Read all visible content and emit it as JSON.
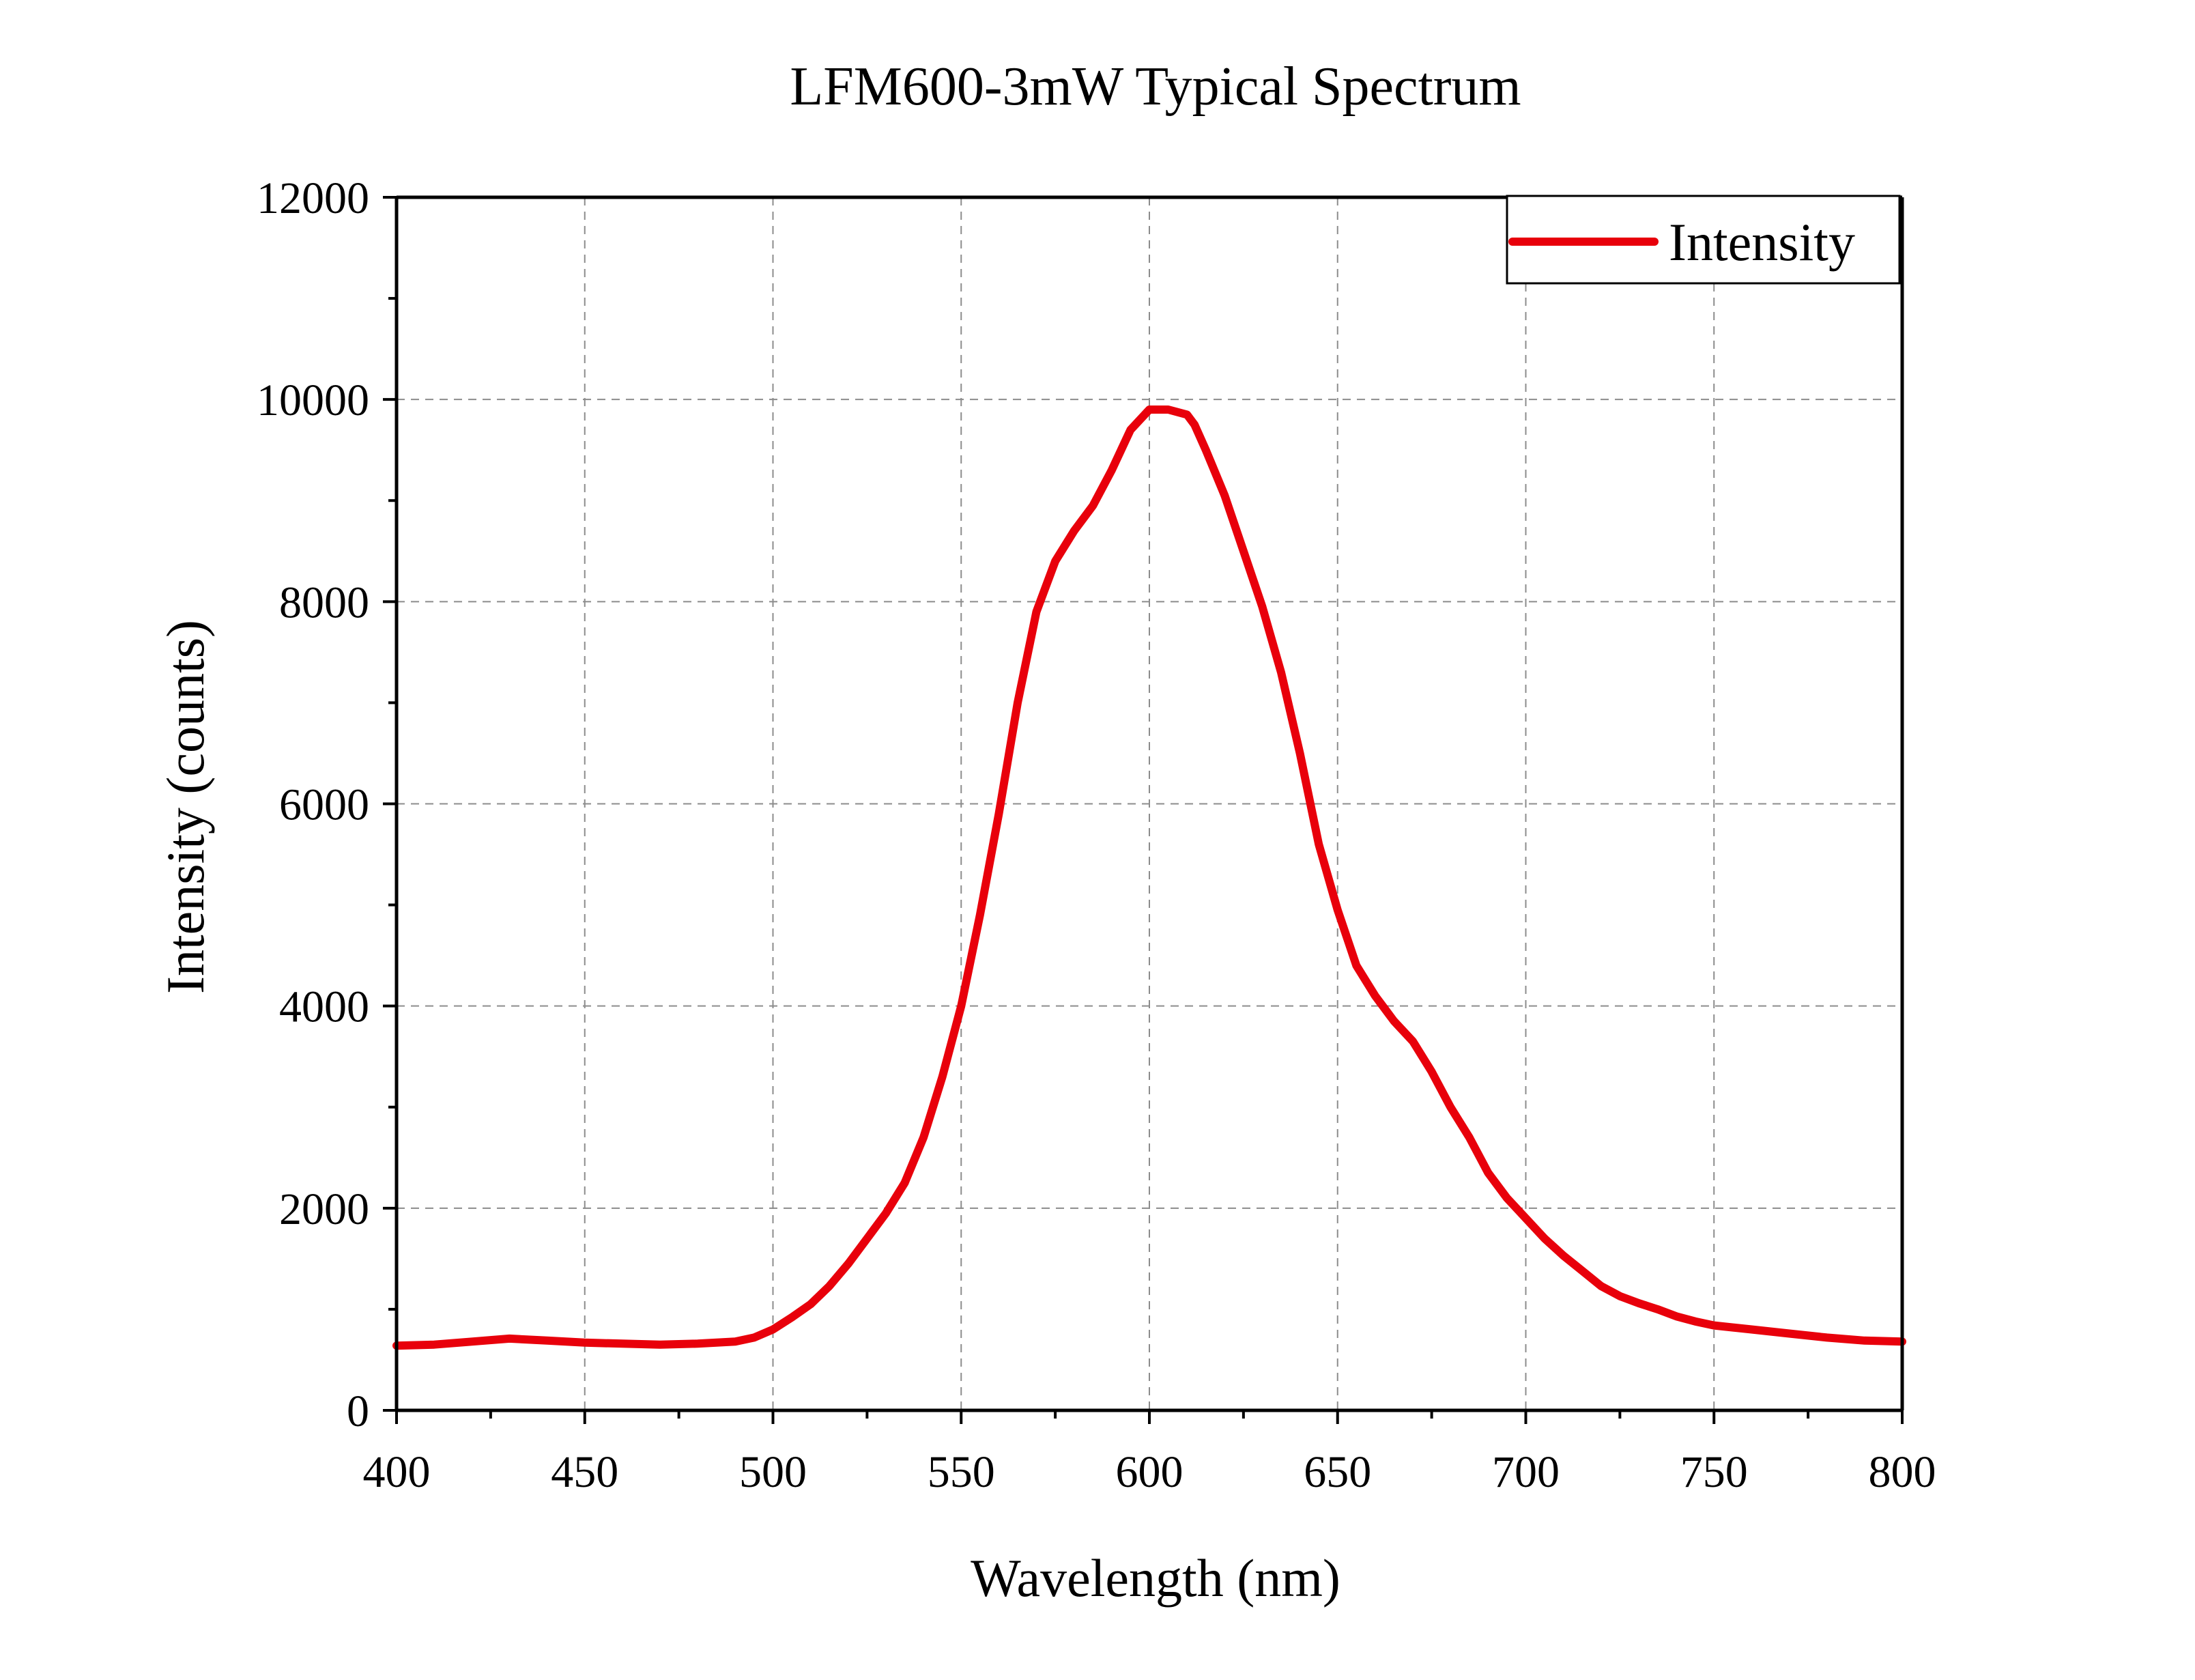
{
  "chart_data": {
    "type": "line",
    "title": "LFM600-3mW Typical Spectrum",
    "xlabel": "Wavelength (nm)",
    "ylabel": "Intensity (counts)",
    "xlim": [
      400,
      800
    ],
    "ylim": [
      0,
      12000
    ],
    "x_ticks": [
      400,
      450,
      500,
      550,
      600,
      650,
      700,
      750,
      800
    ],
    "y_ticks": [
      0,
      2000,
      4000,
      6000,
      8000,
      10000,
      12000
    ],
    "x_tick_labels": [
      "400",
      "450",
      "500",
      "550",
      "600",
      "650",
      "700",
      "750",
      "800"
    ],
    "y_tick_labels": [
      "0",
      "2000",
      "4000",
      "6000",
      "8000",
      "10000",
      "12000"
    ],
    "grid": true,
    "legend_position": "top-right",
    "series": [
      {
        "name": "Intensity",
        "color": "#e8000b",
        "x": [
          400,
          410,
          420,
          430,
          440,
          450,
          460,
          470,
          480,
          490,
          495,
          500,
          505,
          510,
          515,
          520,
          525,
          530,
          535,
          540,
          545,
          550,
          555,
          560,
          565,
          570,
          575,
          580,
          585,
          590,
          595,
          600,
          605,
          610,
          612,
          615,
          620,
          625,
          630,
          635,
          640,
          645,
          650,
          655,
          660,
          665,
          670,
          675,
          680,
          685,
          690,
          695,
          700,
          705,
          710,
          715,
          720,
          725,
          730,
          735,
          740,
          745,
          750,
          760,
          770,
          780,
          790,
          800
        ],
        "values": [
          640,
          650,
          680,
          710,
          690,
          670,
          660,
          650,
          660,
          680,
          720,
          800,
          920,
          1050,
          1230,
          1450,
          1700,
          1950,
          2250,
          2700,
          3300,
          4000,
          4900,
          5900,
          7000,
          7900,
          8400,
          8700,
          8950,
          9300,
          9700,
          9900,
          9900,
          9850,
          9750,
          9500,
          9050,
          8500,
          7950,
          7300,
          6500,
          5600,
          4950,
          4400,
          4100,
          3850,
          3650,
          3350,
          3000,
          2700,
          2350,
          2100,
          1900,
          1700,
          1530,
          1380,
          1230,
          1130,
          1060,
          1000,
          930,
          880,
          840,
          800,
          760,
          720,
          690,
          680
        ]
      }
    ]
  }
}
